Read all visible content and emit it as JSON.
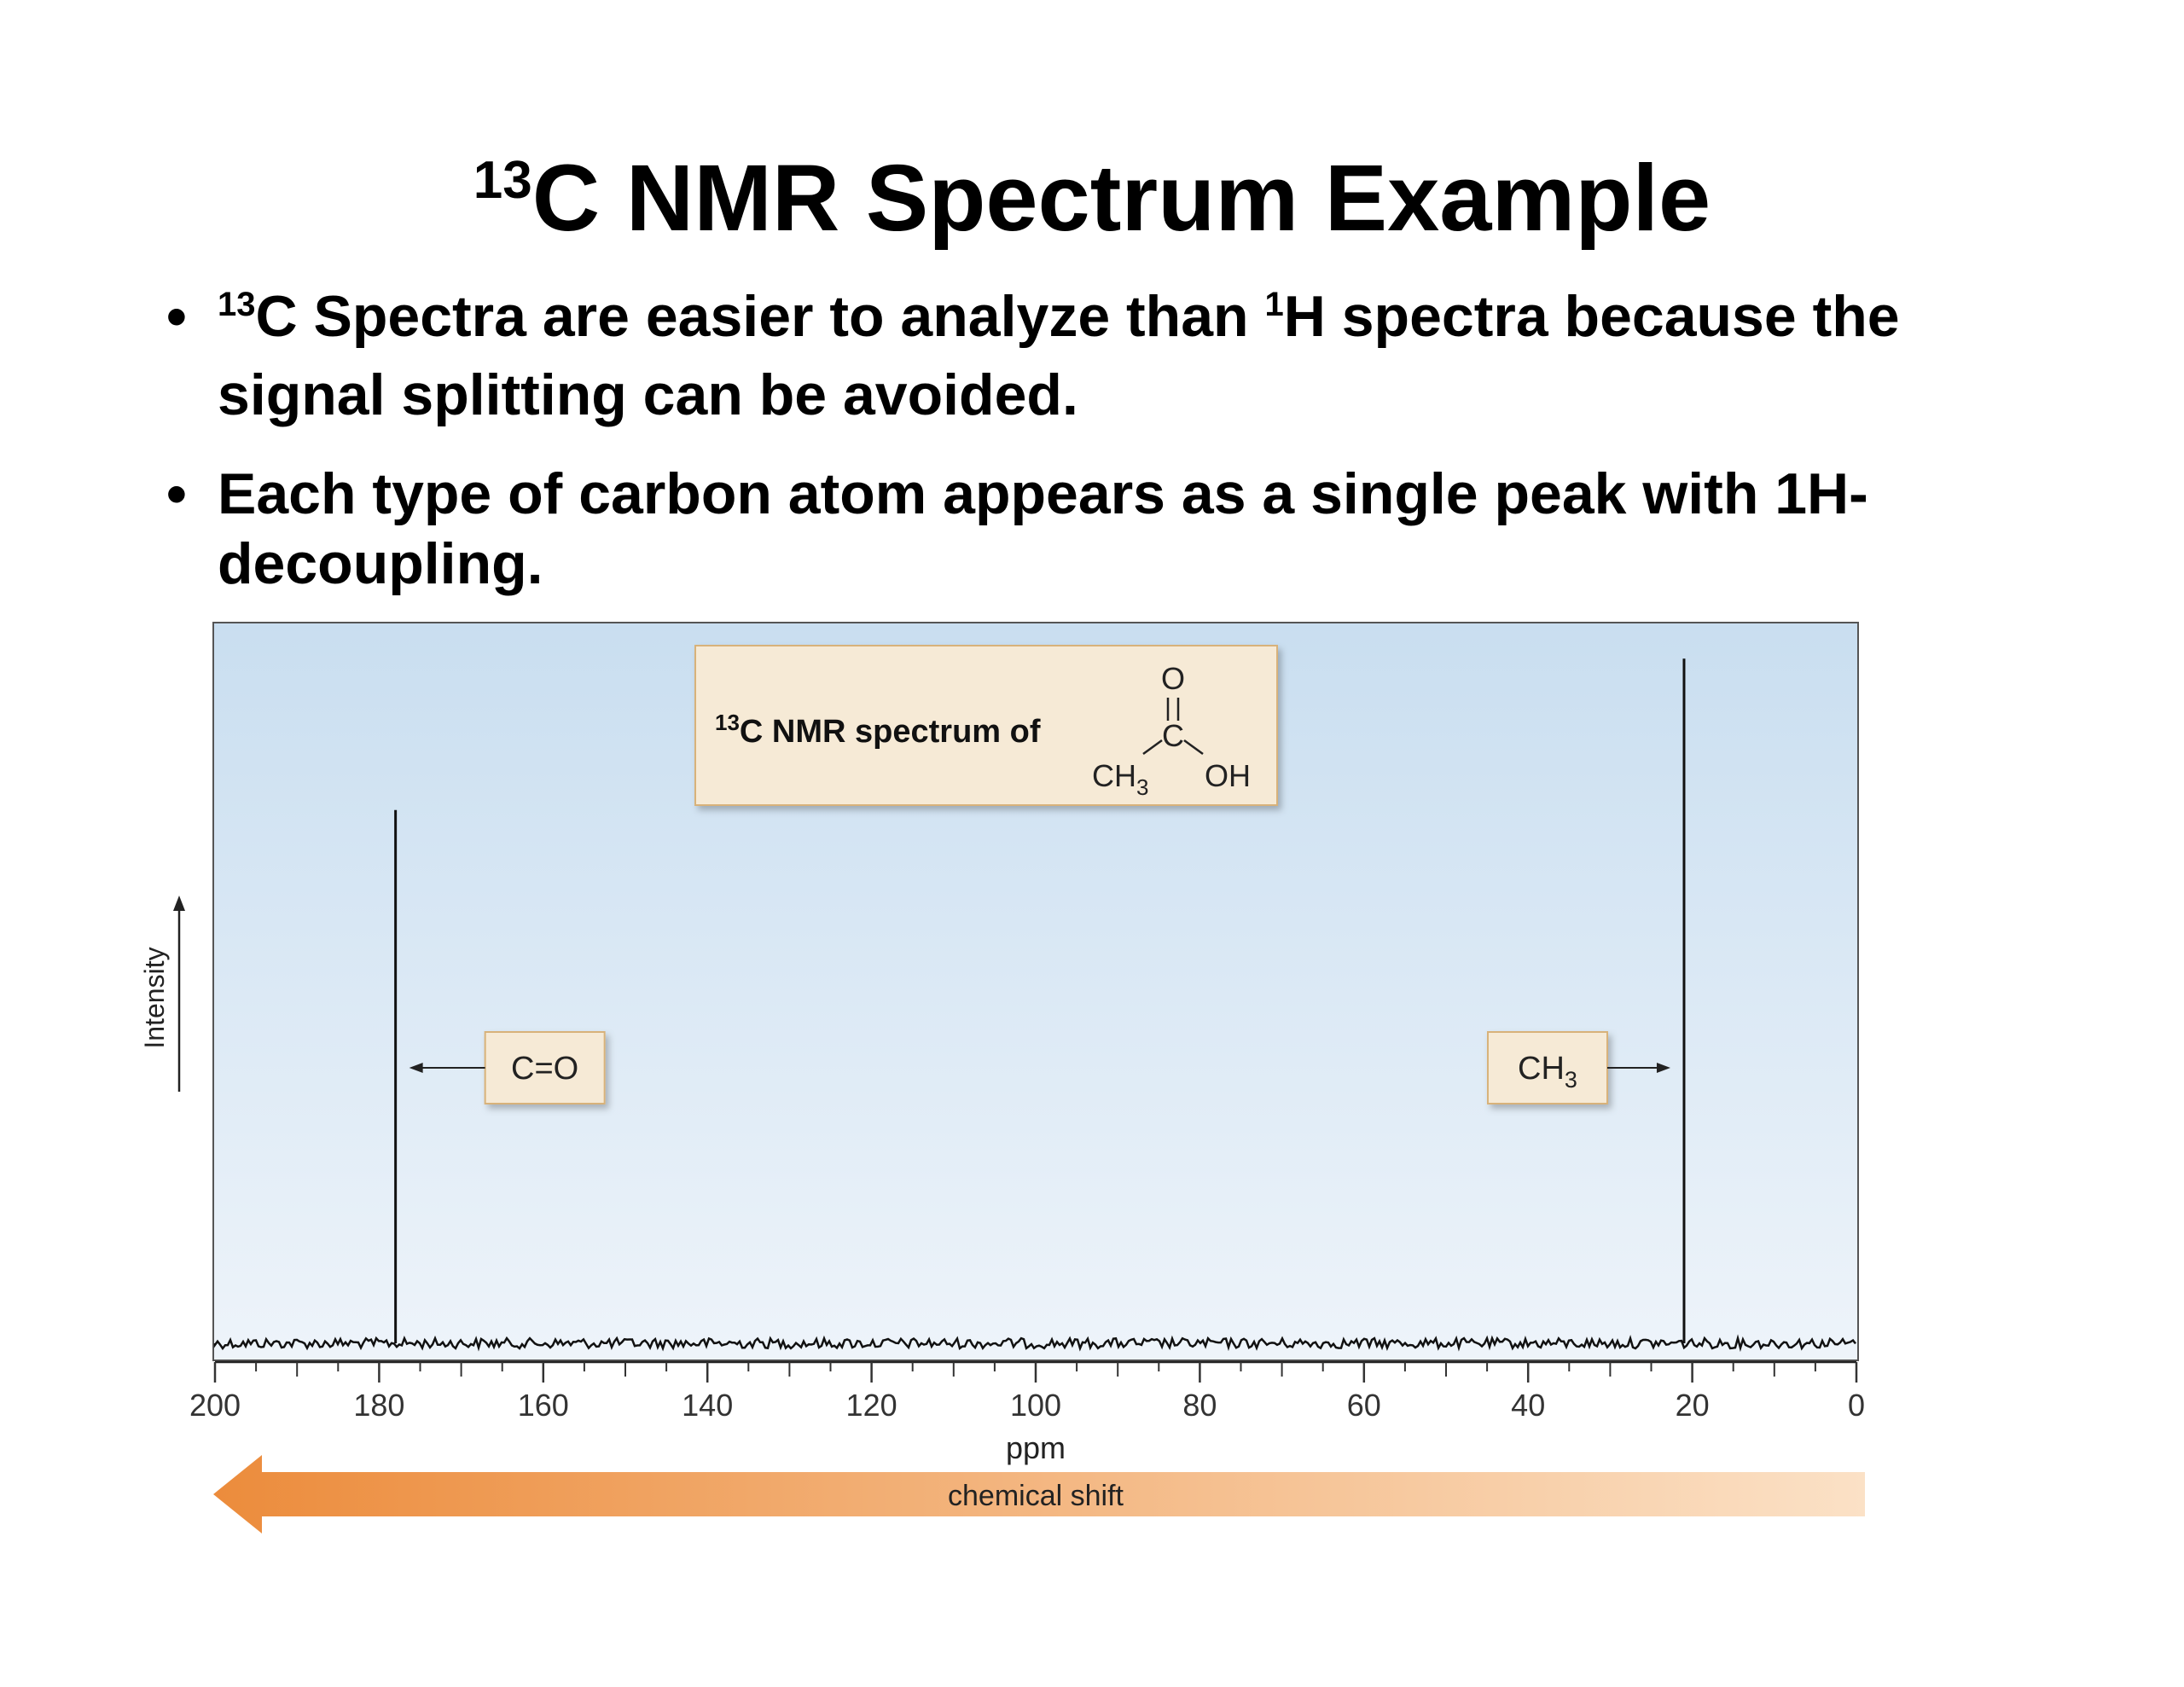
{
  "slide": {
    "title_sup": "13",
    "title_text": "C NMR Spectrum Example",
    "bullets": [
      {
        "dot": "•",
        "sup1": "13",
        "text1": "C Spectra are easier to analyze than ",
        "sup2": "1",
        "text2": "H spectra because the signal splitting can be avoided."
      },
      {
        "dot": "•",
        "text1": "Each type of carbon atom appears as a single peak with 1H-decoupling."
      }
    ]
  },
  "chart_data": {
    "type": "line",
    "title_sup": "13",
    "title_text": "C NMR spectrum of",
    "molecule": {
      "carbonyl_O": "O",
      "carbonyl_C": "C",
      "methyl": "CH",
      "methyl_sub": "3",
      "hydroxyl": "OH"
    },
    "xlabel": "ppm",
    "ylabel": "Intensity",
    "xlim": [
      200,
      0
    ],
    "x_reversed": true,
    "x_ticks": [
      200,
      180,
      160,
      140,
      120,
      100,
      80,
      60,
      40,
      20,
      0
    ],
    "ylim": [
      0,
      1
    ],
    "grid": false,
    "peaks": [
      {
        "x": 178,
        "y": 0.74,
        "label": "C=O",
        "label_side": "right"
      },
      {
        "x": 21,
        "y": 0.95,
        "label": "CH",
        "label_sub": "3",
        "label_side": "left"
      }
    ],
    "shift_arrow_label": "chemical shift",
    "colors": {
      "plot_bg_top": "#c9def0",
      "plot_bg_bottom": "#eef4fa",
      "label_box": "#f6ead6",
      "label_border": "#d8b27a",
      "arrow": "#ec8c3c"
    }
  }
}
